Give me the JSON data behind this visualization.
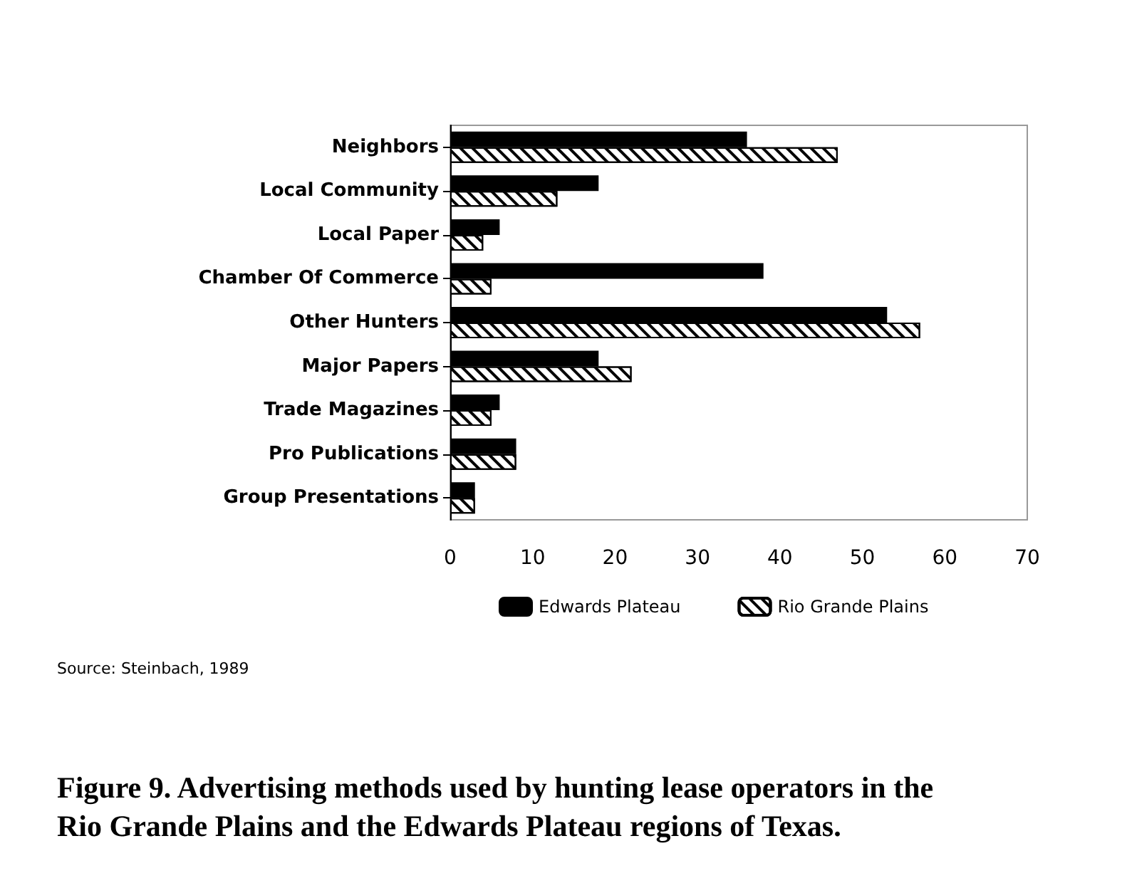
{
  "chart_data": {
    "type": "bar",
    "orientation": "horizontal",
    "title": "Figure 9. Advertising methods used by hunting lease operators in the Rio Grande Plains and the Edwards Plateau regions of Texas.",
    "categories": [
      "Neighbors",
      "Local Community",
      "Local Paper",
      "Chamber Of Commerce",
      "Other Hunters",
      "Major Papers",
      "Trade Magazines",
      "Pro Publications",
      "Group Presentations"
    ],
    "series": [
      {
        "name": "Edwards Plateau",
        "color": "#000000",
        "values": [
          36,
          18,
          6,
          38,
          53,
          18,
          6,
          8,
          3
        ]
      },
      {
        "name": "Rio Grande Plains",
        "color": "#ffffff",
        "values": [
          47,
          13,
          4,
          5,
          57,
          22,
          5,
          8,
          3
        ]
      }
    ],
    "xlim": [
      0,
      70
    ],
    "xticks": [
      0,
      10,
      20,
      30,
      40,
      50,
      60,
      70
    ],
    "grid": false,
    "legend": "bottom",
    "annotations": [
      "Source: Steinbach, 1989"
    ]
  }
}
